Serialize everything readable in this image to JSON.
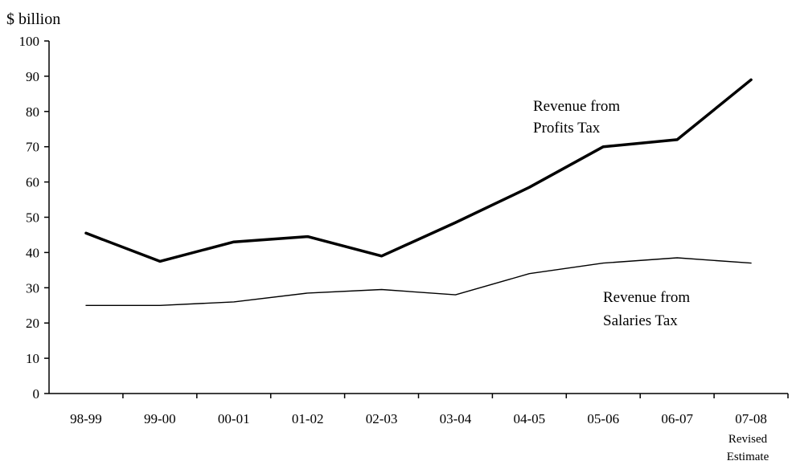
{
  "chart_data": {
    "type": "line",
    "ylabel": "$ billion",
    "xlabel": "",
    "ylim": [
      0,
      100
    ],
    "yticks": [
      "0",
      "10",
      "20",
      "30",
      "40",
      "50",
      "60",
      "70",
      "80",
      "90",
      "100"
    ],
    "categories": [
      "98-99",
      "99-00",
      "00-01",
      "01-02",
      "02-03",
      "03-04",
      "04-05",
      "05-06",
      "06-07",
      "07-08"
    ],
    "category_sublabel": {
      "index": 9,
      "lines": [
        "Revised",
        "Estimate"
      ]
    },
    "series": [
      {
        "name": "Revenue from Profits Tax",
        "label_lines": [
          "Revenue from",
          "Profits Tax"
        ],
        "values": [
          45.5,
          37.5,
          43,
          44.5,
          39,
          48.5,
          58.5,
          70,
          72,
          89
        ],
        "color": "#000000",
        "weight": "thick"
      },
      {
        "name": "Revenue from Salaries Tax",
        "label_lines": [
          "Revenue from",
          "Salaries Tax"
        ],
        "values": [
          25,
          25,
          26,
          28.5,
          29.5,
          28,
          34,
          37,
          38.5,
          37
        ],
        "color": "#000000",
        "weight": "thin"
      }
    ],
    "grid": false,
    "legend": "inline annotations"
  }
}
